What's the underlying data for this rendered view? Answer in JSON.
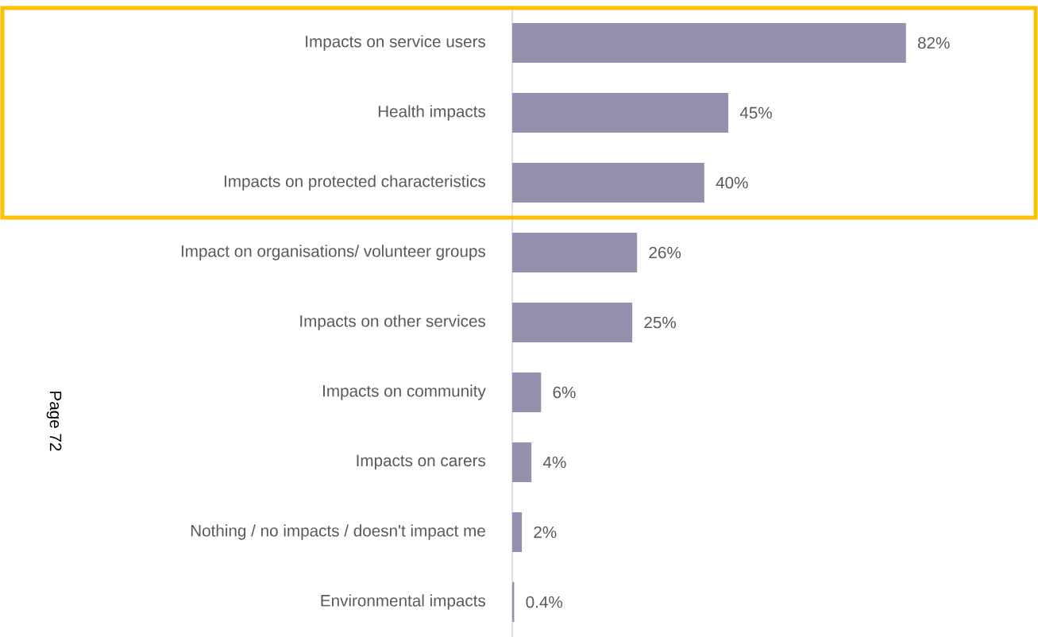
{
  "chart_data": {
    "type": "bar",
    "orientation": "horizontal",
    "categories": [
      "Impacts on service users",
      "Health impacts",
      "Impacts on protected characteristics",
      "Impact on organisations/ volunteer groups",
      "Impacts on other services",
      "Impacts on community",
      "Impacts on carers",
      "Nothing / no impacts / doesn't impact me",
      "Environmental impacts"
    ],
    "values": [
      82,
      45,
      40,
      26,
      25,
      6,
      4,
      2,
      0.4
    ],
    "value_labels": [
      "82%",
      "45%",
      "40%",
      "26%",
      "25%",
      "6%",
      "4%",
      "2%",
      "0.4%"
    ],
    "color": "#9490ae",
    "annotations": [
      "Page 72"
    ]
  }
}
